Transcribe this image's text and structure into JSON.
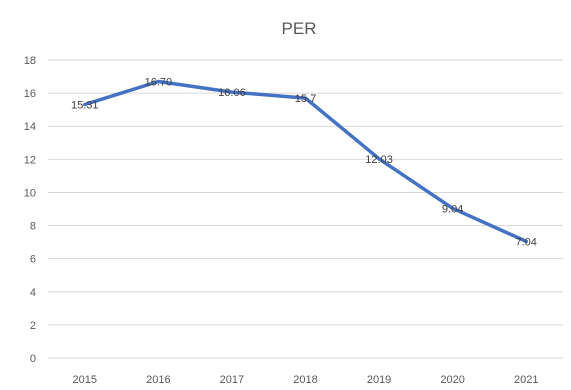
{
  "chart_data": {
    "type": "line",
    "title": "PER",
    "xlabel": "",
    "ylabel": "",
    "categories": [
      "2015",
      "2016",
      "2017",
      "2018",
      "2019",
      "2020",
      "2021"
    ],
    "series": [
      {
        "values": [
          15.31,
          16.7,
          16.06,
          15.7,
          12.03,
          9.04,
          7.04
        ],
        "labels": [
          "15.31",
          "16.70",
          "16.06",
          "15.7",
          "12.03",
          "9.04",
          "7.04"
        ],
        "color": "#4472c4"
      }
    ],
    "ylim": [
      0,
      18
    ],
    "yticks": [
      "0",
      "2",
      "4",
      "6",
      "8",
      "10",
      "12",
      "14",
      "16",
      "18"
    ],
    "grid": true,
    "legend": "none"
  }
}
